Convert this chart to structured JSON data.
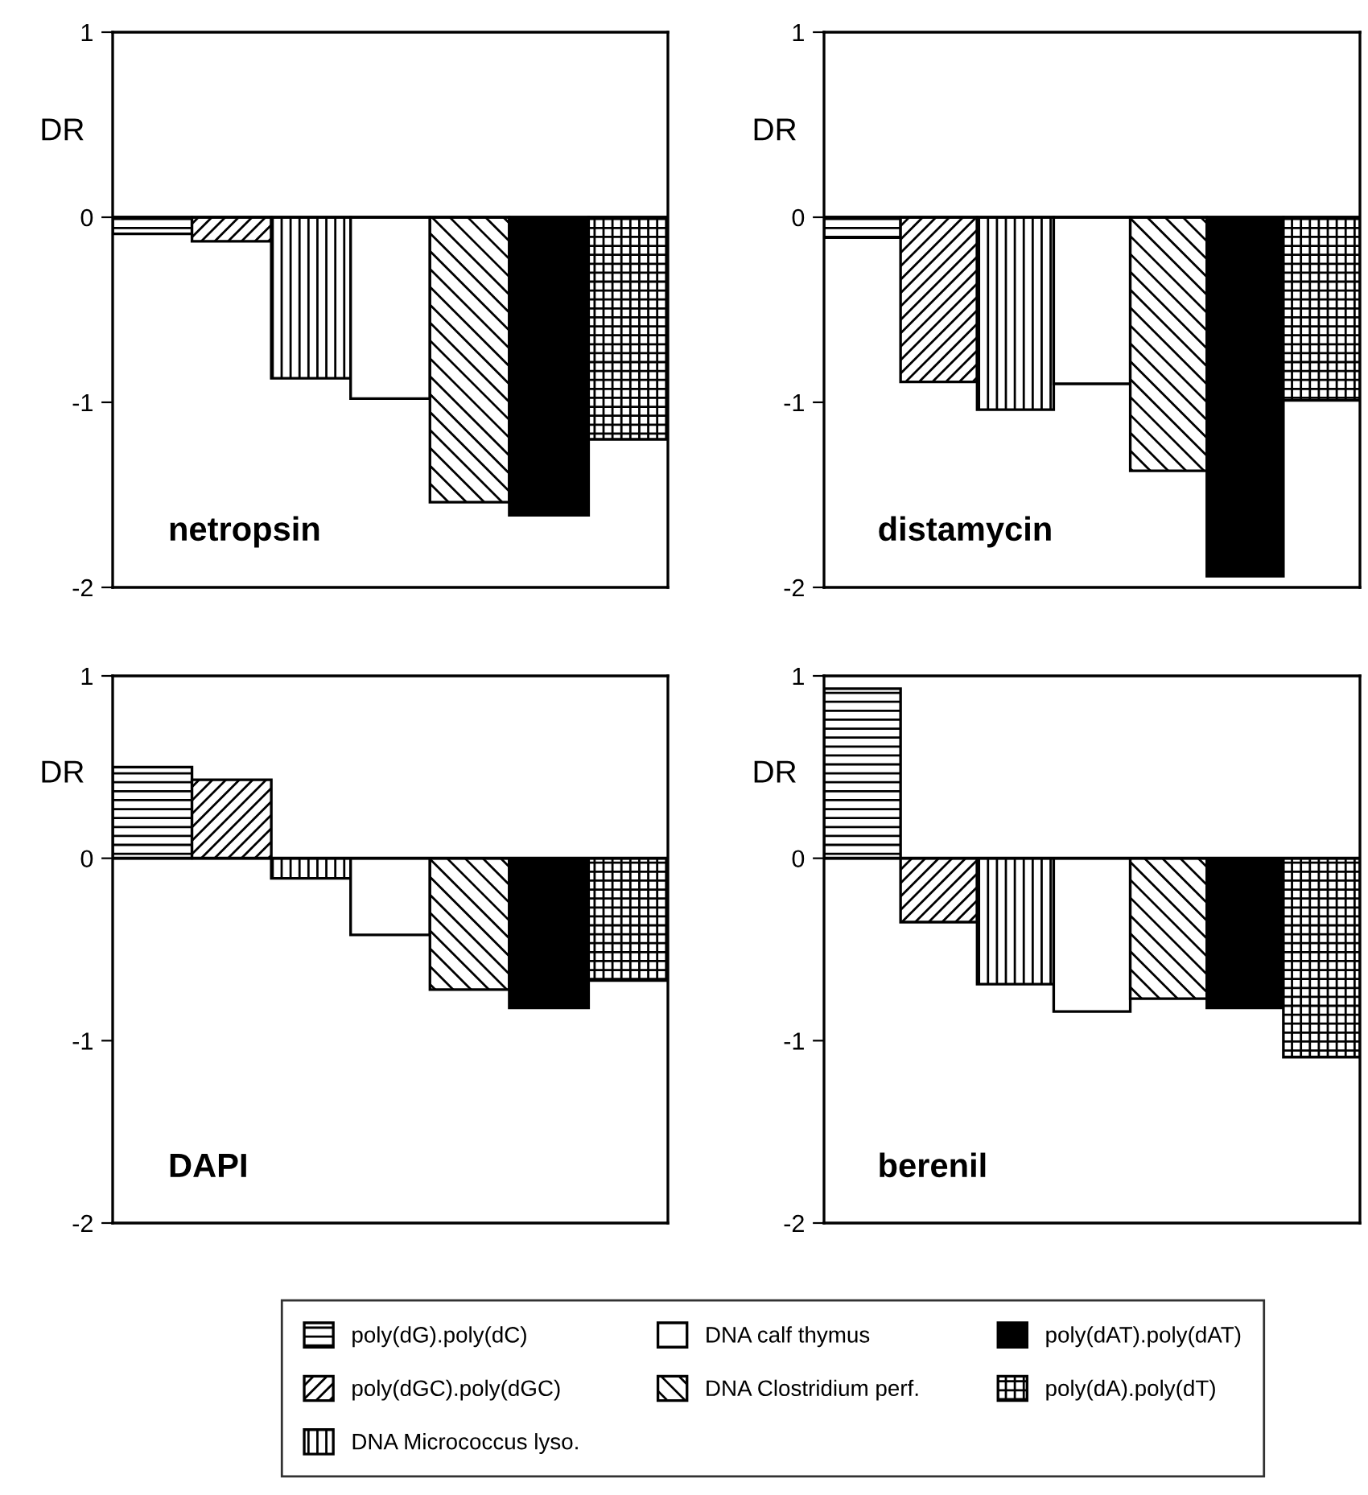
{
  "chart_data": [
    {
      "type": "bar",
      "title": "netropsin",
      "ylabel": "DR",
      "categories": [
        null
      ],
      "ylim": [
        -2,
        1
      ],
      "yticks": [
        -2,
        -1,
        0,
        1
      ],
      "tick_labels": "y",
      "grid": false,
      "legend": "bottom",
      "ref_lines": [
        {
          "axis": "y",
          "value": 0
        }
      ],
      "series": [
        {
          "name": "poly(dG).poly(dC)",
          "color": "#000000",
          "values": [
            -0.09
          ]
        },
        {
          "name": "poly(dGC).poly(dGC)",
          "color": "#000000",
          "values": [
            -0.13
          ]
        },
        {
          "name": "DNA Micrococcus lyso.",
          "color": "#000000",
          "values": [
            -0.87
          ]
        },
        {
          "name": "DNA calf thymus",
          "color": "#000000",
          "values": [
            -0.98
          ]
        },
        {
          "name": "DNA Clostridium perf.",
          "color": "#000000",
          "values": [
            -1.54
          ]
        },
        {
          "name": "poly(dAT).poly(dAT)",
          "color": "#000000",
          "values": [
            -1.61
          ]
        },
        {
          "name": "poly(dA).poly(dT)",
          "color": "#000000",
          "values": [
            -1.2
          ]
        }
      ]
    },
    {
      "type": "bar",
      "title": "distamycin",
      "ylabel": "DR",
      "categories": [
        null
      ],
      "ylim": [
        -2,
        1
      ],
      "yticks": [
        -2,
        -1,
        0,
        1
      ],
      "tick_labels": "y",
      "grid": false,
      "ref_lines": [
        {
          "axis": "y",
          "value": 0
        }
      ],
      "series": [
        {
          "name": "poly(dG).poly(dC)",
          "color": "#000000",
          "values": [
            -0.11
          ]
        },
        {
          "name": "poly(dGC).poly(dGC)",
          "color": "#000000",
          "values": [
            -0.89
          ]
        },
        {
          "name": "DNA Micrococcus lyso.",
          "color": "#000000",
          "values": [
            -1.04
          ]
        },
        {
          "name": "DNA calf thymus",
          "color": "#000000",
          "values": [
            -0.9
          ]
        },
        {
          "name": "DNA Clostridium perf.",
          "color": "#000000",
          "values": [
            -1.37
          ]
        },
        {
          "name": "poly(dAT).poly(dAT)",
          "color": "#000000",
          "values": [
            -1.94
          ]
        },
        {
          "name": "poly(dA).poly(dT)",
          "color": "#000000",
          "values": [
            -0.99
          ]
        }
      ]
    },
    {
      "type": "bar",
      "title": "DAPI",
      "ylabel": "DR",
      "categories": [
        null
      ],
      "ylim": [
        -2,
        1
      ],
      "yticks": [
        -2,
        -1,
        0,
        1
      ],
      "tick_labels": "y",
      "grid": false,
      "ref_lines": [
        {
          "axis": "y",
          "value": 0
        }
      ],
      "series": [
        {
          "name": "poly(dG).poly(dC)",
          "color": "#000000",
          "values": [
            0.5
          ]
        },
        {
          "name": "poly(dGC).poly(dGC)",
          "color": "#000000",
          "values": [
            0.43
          ]
        },
        {
          "name": "DNA Micrococcus lyso.",
          "color": "#000000",
          "values": [
            -0.11
          ]
        },
        {
          "name": "DNA calf thymus",
          "color": "#000000",
          "values": [
            -0.42
          ]
        },
        {
          "name": "DNA Clostridium perf.",
          "color": "#000000",
          "values": [
            -0.72
          ]
        },
        {
          "name": "poly(dAT).poly(dAT)",
          "color": "#000000",
          "values": [
            -0.82
          ]
        },
        {
          "name": "poly(dA).poly(dT)",
          "color": "#000000",
          "values": [
            -0.67
          ]
        }
      ]
    },
    {
      "type": "bar",
      "title": "berenil",
      "ylabel": "DR",
      "categories": [
        null
      ],
      "ylim": [
        -2,
        1
      ],
      "yticks": [
        -2,
        -1,
        0,
        1
      ],
      "tick_labels": "y",
      "grid": false,
      "ref_lines": [
        {
          "axis": "y",
          "value": 0
        }
      ],
      "series": [
        {
          "name": "poly(dG).poly(dC)",
          "color": "#000000",
          "values": [
            0.93
          ]
        },
        {
          "name": "poly(dGC).poly(dGC)",
          "color": "#000000",
          "values": [
            -0.35
          ]
        },
        {
          "name": "DNA Micrococcus lyso.",
          "color": "#000000",
          "values": [
            -0.69
          ]
        },
        {
          "name": "DNA calf thymus",
          "color": "#000000",
          "values": [
            -0.84
          ]
        },
        {
          "name": "DNA Clostridium perf.",
          "color": "#000000",
          "values": [
            -0.77
          ]
        },
        {
          "name": "poly(dAT).poly(dAT)",
          "color": "#000000",
          "values": [
            -0.82
          ]
        },
        {
          "name": "poly(dA).poly(dT)",
          "color": "#000000",
          "values": [
            -1.09
          ]
        }
      ]
    }
  ]
}
